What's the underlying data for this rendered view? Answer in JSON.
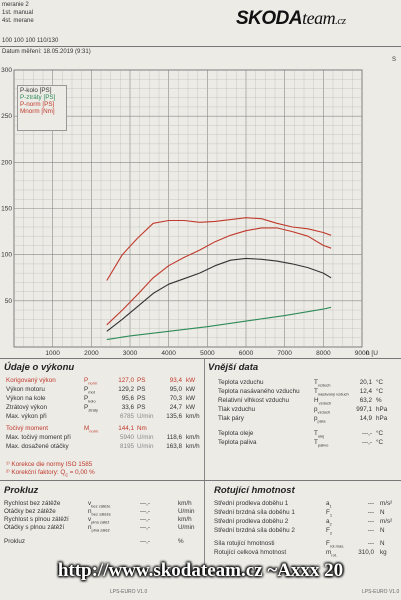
{
  "header": {
    "line1": "meranie 2",
    "line2": "1st. manual",
    "line3": "4st. merane",
    "line4": "100 100 100 110/130",
    "date_line": "Datum měření: 18.05.2019 (9:31)",
    "corner_mark": "S"
  },
  "logo": {
    "part1": "SKODA",
    "part2": "team",
    "part3": ".cz"
  },
  "chart_data": {
    "type": "line",
    "xlabel": "n [U",
    "xlim": [
      0,
      9000
    ],
    "ylim": [
      0,
      300
    ],
    "xticks": [
      "1000",
      "2000",
      "3000",
      "4000",
      "5000",
      "6000",
      "7000",
      "8000",
      "9000"
    ],
    "yticks": [
      "50",
      "100",
      "150",
      "200",
      "250",
      "300"
    ],
    "grid": true,
    "legend_position": "top-left",
    "series": [
      {
        "name": "P-kolo [PS]",
        "color": "#333333",
        "x": [
          2400,
          2800,
          3200,
          3600,
          4000,
          4400,
          4800,
          5200,
          5600,
          6000,
          6400,
          6800,
          7200,
          7600,
          8000,
          8200
        ],
        "y": [
          17,
          30,
          44,
          58,
          68,
          74,
          80,
          88,
          94,
          96,
          95,
          93,
          90,
          86,
          80,
          75
        ]
      },
      {
        "name": "P-ztráty [PS]",
        "color": "#2e8b57",
        "x": [
          2400,
          3000,
          4000,
          5000,
          6000,
          7000,
          8000,
          8200
        ],
        "y": [
          8,
          12,
          17,
          22,
          28,
          34,
          41,
          43
        ]
      },
      {
        "name": "P-norm [PS]",
        "color": "#c0392b",
        "x": [
          2400,
          2800,
          3200,
          3600,
          4000,
          4400,
          4800,
          5200,
          5600,
          6000,
          6400,
          6800,
          7200,
          7600,
          8000,
          8200
        ],
        "y": [
          24,
          40,
          57,
          75,
          88,
          97,
          105,
          114,
          121,
          126,
          129,
          129,
          125,
          120,
          110,
          107
        ]
      },
      {
        "name": "Mnorm [Nm]",
        "color": "#c0392b",
        "x": [
          2400,
          2800,
          3200,
          3600,
          4000,
          4400,
          4800,
          5200,
          5600,
          6000,
          6400,
          6800,
          7200,
          7600,
          8000,
          8200
        ],
        "y": [
          72,
          100,
          118,
          134,
          137,
          137,
          135,
          136,
          138,
          140,
          139,
          134,
          130,
          128,
          124,
          121
        ]
      }
    ]
  },
  "vykon": {
    "title": "Údaje o výkonu",
    "rows": [
      {
        "label": "Korigovaný výkon",
        "sym": "P",
        "sub": "norm",
        "v1": "127,0",
        "u1": "PS",
        "v2": "93,4",
        "u2": "kW",
        "red": true
      },
      {
        "label": "Výkon motoru",
        "sym": "P",
        "sub": "mot",
        "v1": "129,2",
        "u1": "PS",
        "v2": "95,0",
        "u2": "kW",
        "red": false
      },
      {
        "label": "Výkon na kole",
        "sym": "P",
        "sub": "kolo",
        "v1": "95,6",
        "u1": "PS",
        "v2": "70,3",
        "u2": "kW",
        "red": false
      },
      {
        "label": "Ztrátový výkon",
        "sym": "P",
        "sub": "ztráty",
        "v1": "33,6",
        "u1": "PS",
        "v2": "24,7",
        "u2": "kW",
        "red": false
      },
      {
        "label": "Max. výkon při",
        "sym": "",
        "sub": "",
        "v1": "6785",
        "u1": "U/min",
        "v2": "135,6",
        "u2": "km/h",
        "red": false
      },
      {
        "label": "Točivý moment",
        "sym": "M",
        "sub": "norm",
        "v1": "144,1",
        "u1": "Nm",
        "v2": "",
        "u2": "",
        "red": true
      },
      {
        "label": "Max. točivý moment při",
        "sym": "",
        "sub": "",
        "v1": "5940",
        "u1": "U/min",
        "v2": "118,6",
        "u2": "km/h",
        "red": false
      },
      {
        "label": "Max. dosažené otáčky",
        "sym": "",
        "sub": "",
        "v1": "8195",
        "u1": "U/min",
        "v2": "163,8",
        "u2": "km/h",
        "red": false
      }
    ],
    "norm_title": "Korekce die normy ISO 1585",
    "norm_factor": "Korekční faktory: Q",
    "norm_factor_sub": "c",
    "norm_factor_val": "= 0,00 %"
  },
  "vnejsi": {
    "title": "Vnější data",
    "rows": [
      {
        "label": "Teplota vzduchu",
        "sym": "T",
        "sub": "vzduch",
        "val": "20,1",
        "unit": "°C"
      },
      {
        "label": "Teplota nasávaného vzduchu",
        "sym": "T",
        "sub": "nasávaný vzduch",
        "val": "12,4",
        "unit": "°C"
      },
      {
        "label": "Relativní vlhkost vzduchu",
        "sym": "H",
        "sub": "vzduch",
        "val": "63,2",
        "unit": "%"
      },
      {
        "label": "Tlak vzduchu",
        "sym": "p",
        "sub": "vzduch",
        "val": "997,1",
        "unit": "hPa"
      },
      {
        "label": "Tlak páry",
        "sym": "p",
        "sub": "pára",
        "val": "14,9",
        "unit": "hPa"
      },
      {
        "label": "Teplota oleje",
        "sym": "T",
        "sub": "olej",
        "val": "---,-",
        "unit": "°C"
      },
      {
        "label": "Teplota paliva",
        "sym": "T",
        "sub": "palivo",
        "val": "---,-",
        "unit": "°C"
      }
    ]
  },
  "prokluz": {
    "title": "Prokluz",
    "rows": [
      {
        "label": "Rychlost bez zátěže",
        "sym": "v",
        "sub": "bez zátěže",
        "val": "---,-",
        "unit": "km/h"
      },
      {
        "label": "Otáčky bez zátěže",
        "sym": "n",
        "sub": "bez zátěže",
        "val": "---,-",
        "unit": "U/min"
      },
      {
        "label": "Rychlost s plnou zátěží",
        "sym": "v",
        "sub": "plná zátěž",
        "val": "---,-",
        "unit": "km/h"
      },
      {
        "label": "Otáčky s plnou zátěží",
        "sym": "n",
        "sub": "plná zátěž",
        "val": "---,-",
        "unit": "U/min"
      },
      {
        "label": "Prokluz",
        "sym": "",
        "sub": "",
        "val": "---,-",
        "unit": "%"
      }
    ]
  },
  "hmotnost": {
    "title": "Rotující hmotnost",
    "rows": [
      {
        "label": "Střední prodleva doběhu 1",
        "sym": "a",
        "sub": "1",
        "val": "---",
        "unit": "m/s²"
      },
      {
        "label": "Střední brzdná síla doběhu 1",
        "sym": "F",
        "sub": "1",
        "val": "---",
        "unit": "N"
      },
      {
        "label": "Střední prodleva doběhu 2",
        "sym": "a",
        "sub": "2",
        "val": "---",
        "unit": "m/s²"
      },
      {
        "label": "Střední brzdná síla doběhu 2",
        "sym": "F",
        "sub": "2",
        "val": "---",
        "unit": "N"
      },
      {
        "label": "Síla rotující hmotnosti",
        "sym": "F",
        "sub": "rot.mas.",
        "val": "---",
        "unit": "N"
      },
      {
        "label": "Rotující celková hmotnost",
        "sym": "m",
        "sub": "rot.",
        "val": "310,0",
        "unit": "kg"
      }
    ]
  },
  "footer": {
    "left": "LPS-EURO V1.0",
    "right": "LPS-EURO V1.0"
  },
  "watermark": "http://www.skodateam.cz ~Axxx 20"
}
